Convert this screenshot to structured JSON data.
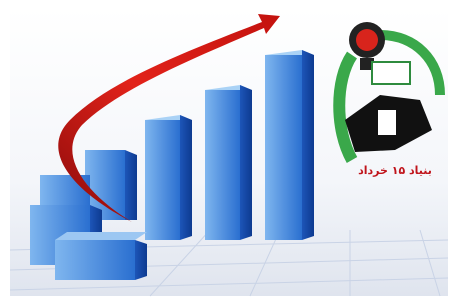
{
  "logo": {
    "caption": "بنیاد ۱۵ خرداد"
  }
}
